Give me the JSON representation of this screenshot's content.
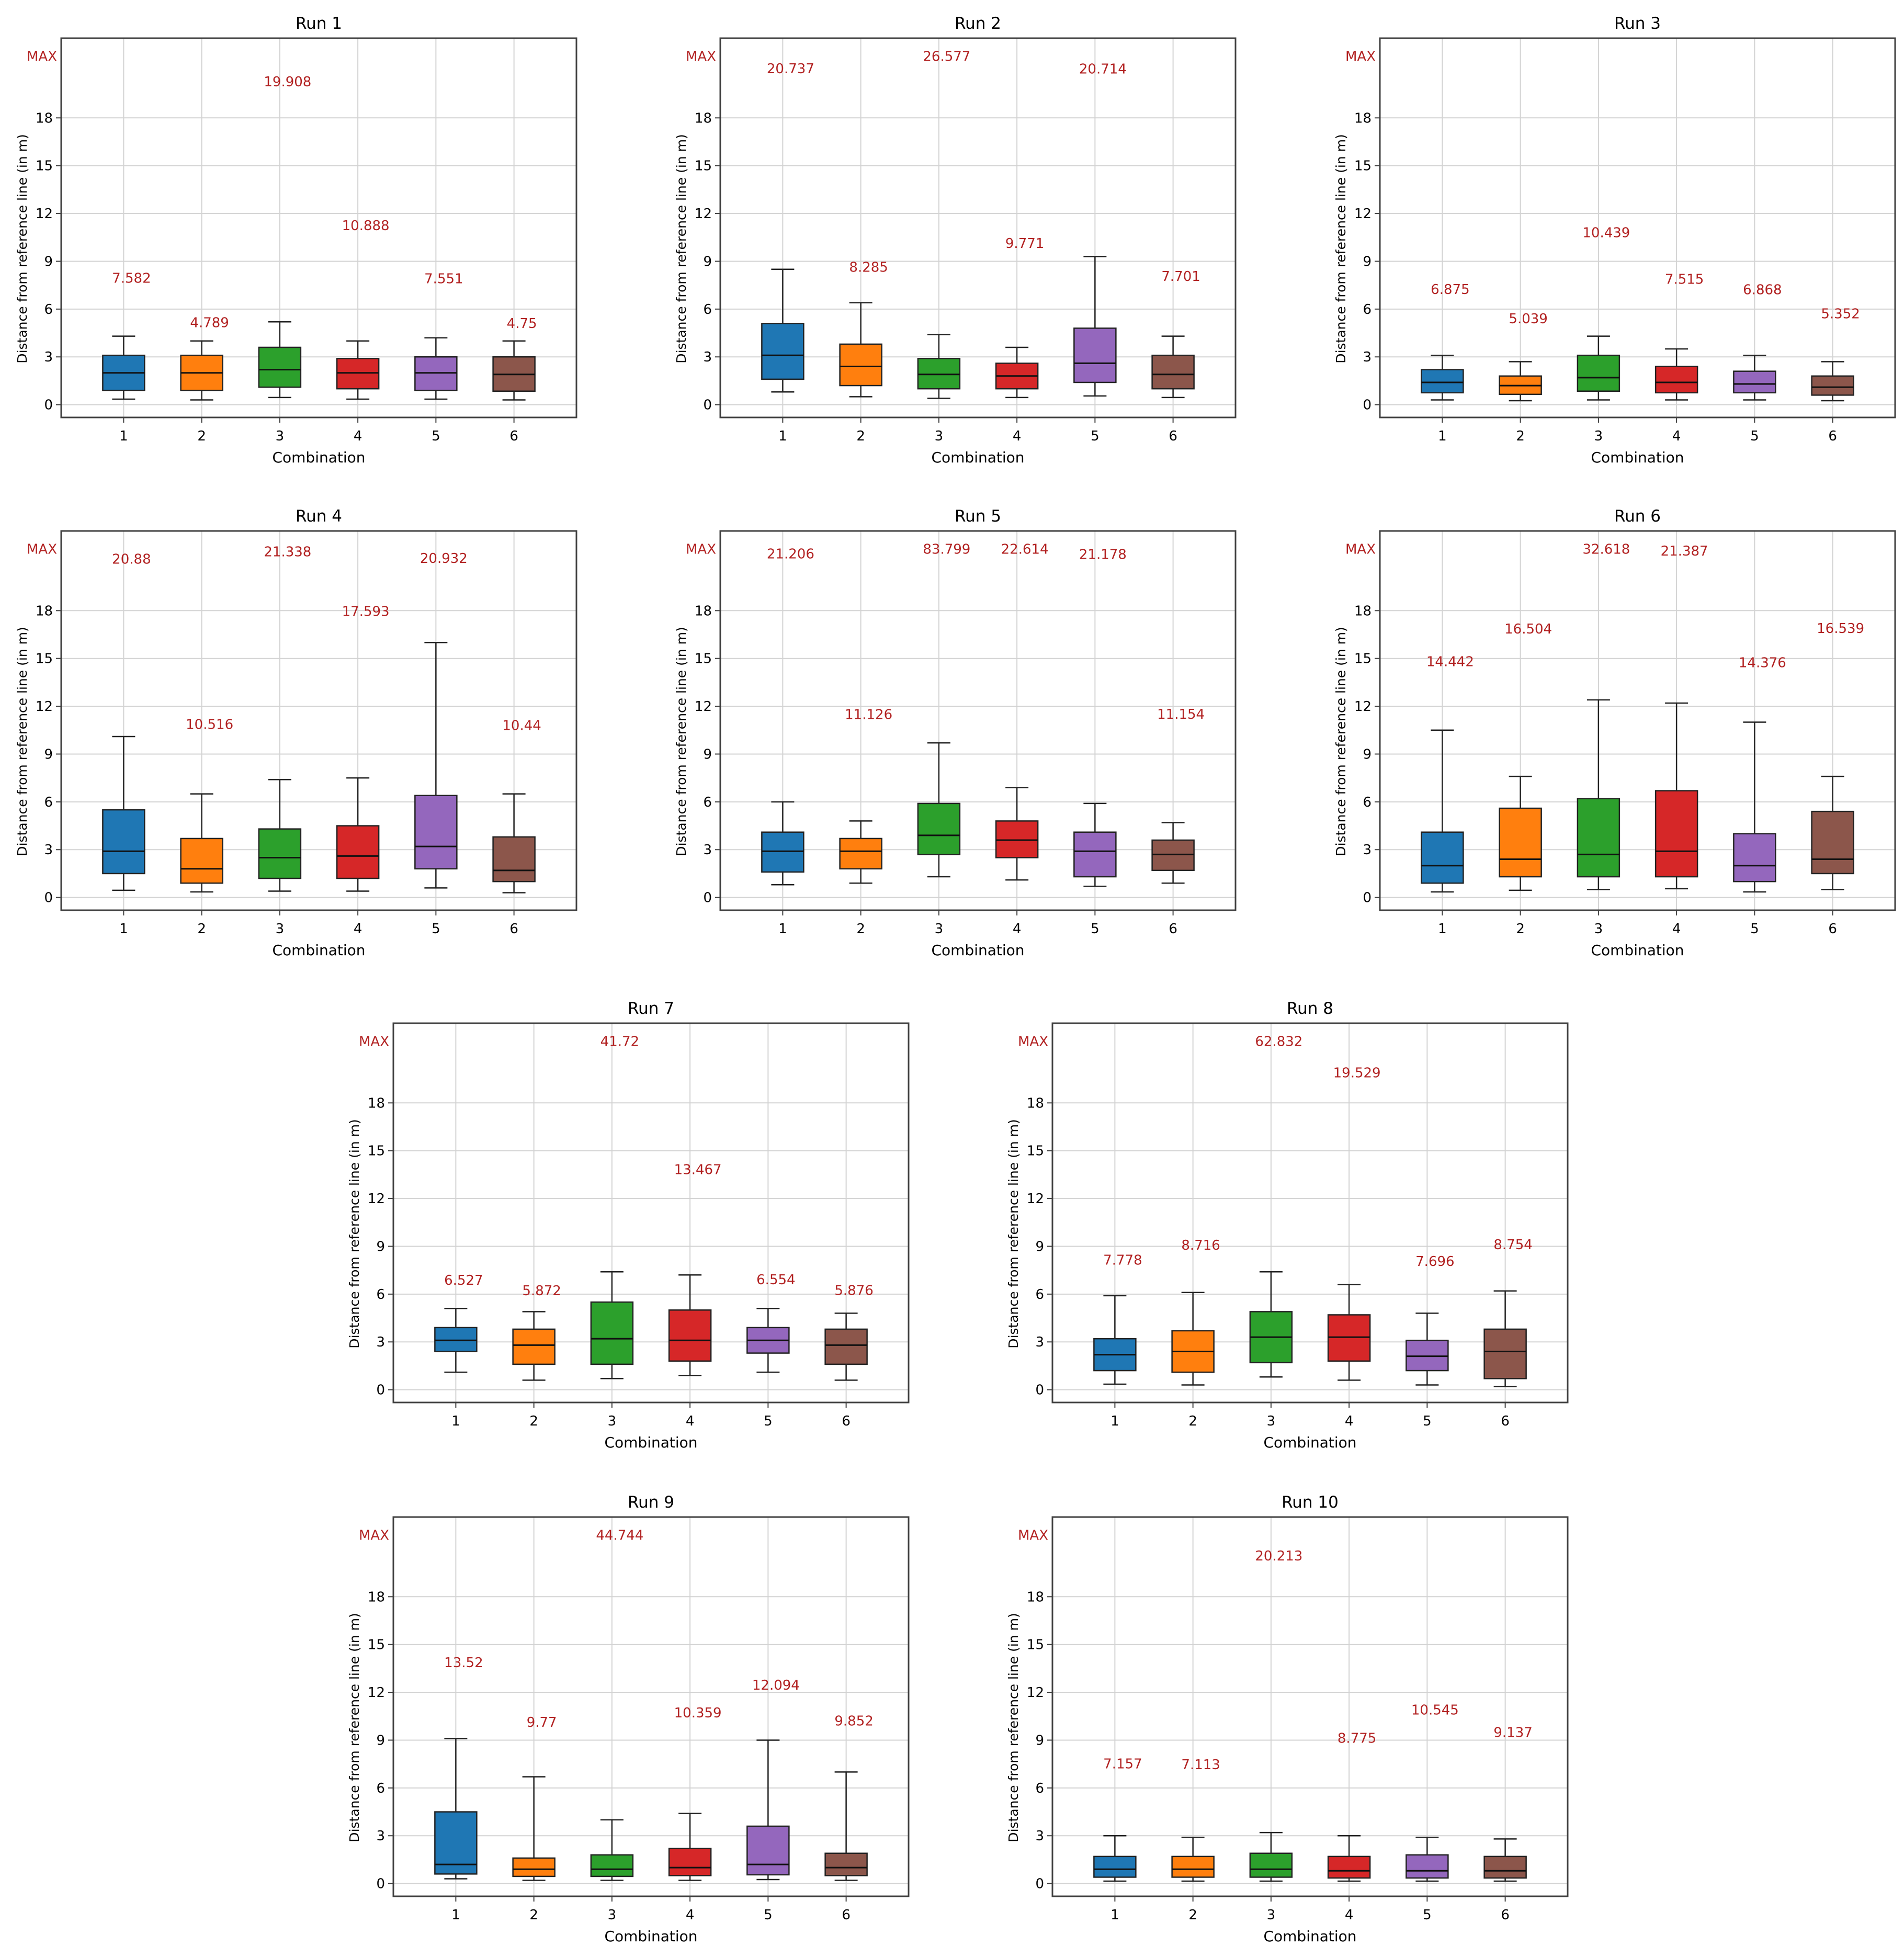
{
  "chart_data": [
    {
      "type": "box",
      "title": "Run 1",
      "xlabel": "Combination",
      "ylabel": "Distance from reference line (in m)",
      "categories": [
        "1",
        "2",
        "3",
        "4",
        "5",
        "6"
      ],
      "yticks": [
        0,
        3,
        6,
        9,
        12,
        15,
        18
      ],
      "ylim": [
        -0.8,
        23
      ],
      "max_label": "MAX",
      "boxes": [
        {
          "whislo": 0.35,
          "q1": 0.9,
          "med": 2.0,
          "q3": 3.1,
          "whishi": 4.3,
          "max": "7.582"
        },
        {
          "whislo": 0.3,
          "q1": 0.9,
          "med": 2.0,
          "q3": 3.1,
          "whishi": 4.0,
          "max": "4.789"
        },
        {
          "whislo": 0.45,
          "q1": 1.1,
          "med": 2.2,
          "q3": 3.6,
          "whishi": 5.2,
          "max": "19.908"
        },
        {
          "whislo": 0.35,
          "q1": 1.0,
          "med": 2.0,
          "q3": 2.9,
          "whishi": 4.0,
          "max": "10.888"
        },
        {
          "whislo": 0.35,
          "q1": 0.9,
          "med": 2.0,
          "q3": 3.0,
          "whishi": 4.2,
          "max": "7.551"
        },
        {
          "whislo": 0.3,
          "q1": 0.85,
          "med": 1.9,
          "q3": 3.0,
          "whishi": 4.0,
          "max": "4.75"
        }
      ]
    },
    {
      "type": "box",
      "title": "Run 2",
      "xlabel": "Combination",
      "ylabel": "Distance from reference line (in m)",
      "categories": [
        "1",
        "2",
        "3",
        "4",
        "5",
        "6"
      ],
      "yticks": [
        0,
        3,
        6,
        9,
        12,
        15,
        18
      ],
      "ylim": [
        -0.8,
        23
      ],
      "max_label": "MAX",
      "boxes": [
        {
          "whislo": 0.8,
          "q1": 1.6,
          "med": 3.1,
          "q3": 5.1,
          "whishi": 8.5,
          "max": "20.737"
        },
        {
          "whislo": 0.5,
          "q1": 1.2,
          "med": 2.4,
          "q3": 3.8,
          "whishi": 6.4,
          "max": "8.285"
        },
        {
          "whislo": 0.4,
          "q1": 1.0,
          "med": 1.9,
          "q3": 2.9,
          "whishi": 4.4,
          "max": "26.577"
        },
        {
          "whislo": 0.45,
          "q1": 1.0,
          "med": 1.8,
          "q3": 2.6,
          "whishi": 3.6,
          "max": "9.771"
        },
        {
          "whislo": 0.55,
          "q1": 1.4,
          "med": 2.6,
          "q3": 4.8,
          "whishi": 9.3,
          "max": "20.714"
        },
        {
          "whislo": 0.45,
          "q1": 1.0,
          "med": 1.9,
          "q3": 3.1,
          "whishi": 4.3,
          "max": "7.701"
        }
      ]
    },
    {
      "type": "box",
      "title": "Run 3",
      "xlabel": "Combination",
      "ylabel": "Distance from reference line (in m)",
      "categories": [
        "1",
        "2",
        "3",
        "4",
        "5",
        "6"
      ],
      "yticks": [
        0,
        3,
        6,
        9,
        12,
        15,
        18
      ],
      "ylim": [
        -0.8,
        23
      ],
      "max_label": "MAX",
      "boxes": [
        {
          "whislo": 0.3,
          "q1": 0.75,
          "med": 1.4,
          "q3": 2.2,
          "whishi": 3.1,
          "max": "6.875"
        },
        {
          "whislo": 0.25,
          "q1": 0.65,
          "med": 1.2,
          "q3": 1.8,
          "whishi": 2.7,
          "max": "5.039"
        },
        {
          "whislo": 0.3,
          "q1": 0.85,
          "med": 1.7,
          "q3": 3.1,
          "whishi": 4.3,
          "max": "10.439"
        },
        {
          "whislo": 0.3,
          "q1": 0.75,
          "med": 1.4,
          "q3": 2.4,
          "whishi": 3.5,
          "max": "7.515"
        },
        {
          "whislo": 0.3,
          "q1": 0.75,
          "med": 1.3,
          "q3": 2.1,
          "whishi": 3.1,
          "max": "6.868"
        },
        {
          "whislo": 0.25,
          "q1": 0.6,
          "med": 1.1,
          "q3": 1.8,
          "whishi": 2.7,
          "max": "5.352"
        }
      ]
    },
    {
      "type": "box",
      "title": "Run 4",
      "xlabel": "Combination",
      "ylabel": "Distance from reference line (in m)",
      "categories": [
        "1",
        "2",
        "3",
        "4",
        "5",
        "6"
      ],
      "yticks": [
        0,
        3,
        6,
        9,
        12,
        15,
        18
      ],
      "ylim": [
        -0.8,
        23
      ],
      "max_label": "MAX",
      "boxes": [
        {
          "whislo": 0.45,
          "q1": 1.5,
          "med": 2.9,
          "q3": 5.5,
          "whishi": 10.1,
          "max": "20.88"
        },
        {
          "whislo": 0.35,
          "q1": 0.9,
          "med": 1.8,
          "q3": 3.7,
          "whishi": 6.5,
          "max": "10.516"
        },
        {
          "whislo": 0.4,
          "q1": 1.2,
          "med": 2.5,
          "q3": 4.3,
          "whishi": 7.4,
          "max": "21.338"
        },
        {
          "whislo": 0.4,
          "q1": 1.2,
          "med": 2.6,
          "q3": 4.5,
          "whishi": 7.5,
          "max": "17.593"
        },
        {
          "whislo": 0.6,
          "q1": 1.8,
          "med": 3.2,
          "q3": 6.4,
          "whishi": 16.0,
          "max": "20.932"
        },
        {
          "whislo": 0.3,
          "q1": 1.0,
          "med": 1.7,
          "q3": 3.8,
          "whishi": 6.5,
          "max": "10.44"
        }
      ]
    },
    {
      "type": "box",
      "title": "Run 5",
      "xlabel": "Combination",
      "ylabel": "Distance from reference line (in m)",
      "categories": [
        "1",
        "2",
        "3",
        "4",
        "5",
        "6"
      ],
      "yticks": [
        0,
        3,
        6,
        9,
        12,
        15,
        18
      ],
      "ylim": [
        -0.8,
        23
      ],
      "max_label": "MAX",
      "boxes": [
        {
          "whislo": 0.8,
          "q1": 1.6,
          "med": 2.9,
          "q3": 4.1,
          "whishi": 6.0,
          "max": "21.206"
        },
        {
          "whislo": 0.9,
          "q1": 1.8,
          "med": 2.9,
          "q3": 3.7,
          "whishi": 4.8,
          "max": "11.126"
        },
        {
          "whislo": 1.3,
          "q1": 2.7,
          "med": 3.9,
          "q3": 5.9,
          "whishi": 9.7,
          "max": "83.799"
        },
        {
          "whislo": 1.1,
          "q1": 2.5,
          "med": 3.6,
          "q3": 4.8,
          "whishi": 6.9,
          "max": "22.614"
        },
        {
          "whislo": 0.7,
          "q1": 1.3,
          "med": 2.9,
          "q3": 4.1,
          "whishi": 5.9,
          "max": "21.178"
        },
        {
          "whislo": 0.9,
          "q1": 1.7,
          "med": 2.7,
          "q3": 3.6,
          "whishi": 4.7,
          "max": "11.154"
        }
      ]
    },
    {
      "type": "box",
      "title": "Run 6",
      "xlabel": "Combination",
      "ylabel": "Distance from reference line (in m)",
      "categories": [
        "1",
        "2",
        "3",
        "4",
        "5",
        "6"
      ],
      "yticks": [
        0,
        3,
        6,
        9,
        12,
        15,
        18
      ],
      "ylim": [
        -0.8,
        23
      ],
      "max_label": "MAX",
      "boxes": [
        {
          "whislo": 0.35,
          "q1": 0.9,
          "med": 2.0,
          "q3": 4.1,
          "whishi": 10.5,
          "max": "14.442"
        },
        {
          "whislo": 0.45,
          "q1": 1.3,
          "med": 2.4,
          "q3": 5.6,
          "whishi": 7.6,
          "max": "16.504"
        },
        {
          "whislo": 0.5,
          "q1": 1.3,
          "med": 2.7,
          "q3": 6.2,
          "whishi": 12.4,
          "max": "32.618"
        },
        {
          "whislo": 0.55,
          "q1": 1.3,
          "med": 2.9,
          "q3": 6.7,
          "whishi": 12.2,
          "max": "21.387"
        },
        {
          "whislo": 0.35,
          "q1": 1.0,
          "med": 2.0,
          "q3": 4.0,
          "whishi": 11.0,
          "max": "14.376"
        },
        {
          "whislo": 0.5,
          "q1": 1.5,
          "med": 2.4,
          "q3": 5.4,
          "whishi": 7.6,
          "max": "16.539"
        }
      ]
    },
    {
      "type": "box",
      "title": "Run 7",
      "xlabel": "Combination",
      "ylabel": "Distance from reference line (in m)",
      "categories": [
        "1",
        "2",
        "3",
        "4",
        "5",
        "6"
      ],
      "yticks": [
        0,
        3,
        6,
        9,
        12,
        15,
        18
      ],
      "ylim": [
        -0.8,
        23
      ],
      "max_label": "MAX",
      "boxes": [
        {
          "whislo": 1.1,
          "q1": 2.4,
          "med": 3.1,
          "q3": 3.9,
          "whishi": 5.1,
          "max": "6.527"
        },
        {
          "whislo": 0.6,
          "q1": 1.6,
          "med": 2.8,
          "q3": 3.8,
          "whishi": 4.9,
          "max": "5.872"
        },
        {
          "whislo": 0.7,
          "q1": 1.6,
          "med": 3.2,
          "q3": 5.5,
          "whishi": 7.4,
          "max": "41.72"
        },
        {
          "whislo": 0.9,
          "q1": 1.8,
          "med": 3.1,
          "q3": 5.0,
          "whishi": 7.2,
          "max": "13.467"
        },
        {
          "whislo": 1.1,
          "q1": 2.3,
          "med": 3.1,
          "q3": 3.9,
          "whishi": 5.1,
          "max": "6.554"
        },
        {
          "whislo": 0.6,
          "q1": 1.6,
          "med": 2.8,
          "q3": 3.8,
          "whishi": 4.8,
          "max": "5.876"
        }
      ]
    },
    {
      "type": "box",
      "title": "Run 8",
      "xlabel": "Combination",
      "ylabel": "Distance from reference line (in m)",
      "categories": [
        "1",
        "2",
        "3",
        "4",
        "5",
        "6"
      ],
      "yticks": [
        0,
        3,
        6,
        9,
        12,
        15,
        18
      ],
      "ylim": [
        -0.8,
        23
      ],
      "max_label": "MAX",
      "boxes": [
        {
          "whislo": 0.35,
          "q1": 1.2,
          "med": 2.2,
          "q3": 3.2,
          "whishi": 5.9,
          "max": "7.778"
        },
        {
          "whislo": 0.3,
          "q1": 1.1,
          "med": 2.4,
          "q3": 3.7,
          "whishi": 6.1,
          "max": "8.716"
        },
        {
          "whislo": 0.8,
          "q1": 1.7,
          "med": 3.3,
          "q3": 4.9,
          "whishi": 7.4,
          "max": "62.832"
        },
        {
          "whislo": 0.6,
          "q1": 1.8,
          "med": 3.3,
          "q3": 4.7,
          "whishi": 6.6,
          "max": "19.529"
        },
        {
          "whislo": 0.3,
          "q1": 1.2,
          "med": 2.1,
          "q3": 3.1,
          "whishi": 4.8,
          "max": "7.696"
        },
        {
          "whislo": 0.2,
          "q1": 0.7,
          "med": 2.4,
          "q3": 3.8,
          "whishi": 6.2,
          "max": "8.754"
        }
      ]
    },
    {
      "type": "box",
      "title": "Run 9",
      "xlabel": "Combination",
      "ylabel": "Distance from reference line (in m)",
      "categories": [
        "1",
        "2",
        "3",
        "4",
        "5",
        "6"
      ],
      "yticks": [
        0,
        3,
        6,
        9,
        12,
        15,
        18
      ],
      "ylim": [
        -0.8,
        23
      ],
      "max_label": "MAX",
      "boxes": [
        {
          "whislo": 0.3,
          "q1": 0.6,
          "med": 1.2,
          "q3": 4.5,
          "whishi": 9.1,
          "max": "13.52"
        },
        {
          "whislo": 0.2,
          "q1": 0.45,
          "med": 0.9,
          "q3": 1.6,
          "whishi": 6.7,
          "max": "9.77"
        },
        {
          "whislo": 0.2,
          "q1": 0.45,
          "med": 0.9,
          "q3": 1.8,
          "whishi": 4.0,
          "max": "44.744"
        },
        {
          "whislo": 0.2,
          "q1": 0.5,
          "med": 1.0,
          "q3": 2.2,
          "whishi": 4.4,
          "max": "10.359"
        },
        {
          "whislo": 0.25,
          "q1": 0.55,
          "med": 1.2,
          "q3": 3.6,
          "whishi": 9.0,
          "max": "12.094"
        },
        {
          "whislo": 0.2,
          "q1": 0.5,
          "med": 1.0,
          "q3": 1.9,
          "whishi": 7.0,
          "max": "9.852"
        }
      ]
    },
    {
      "type": "box",
      "title": "Run 10",
      "xlabel": "Combination",
      "ylabel": "Distance from reference line (in m)",
      "categories": [
        "1",
        "2",
        "3",
        "4",
        "5",
        "6"
      ],
      "yticks": [
        0,
        3,
        6,
        9,
        12,
        15,
        18
      ],
      "ylim": [
        -0.8,
        23
      ],
      "max_label": "MAX",
      "boxes": [
        {
          "whislo": 0.15,
          "q1": 0.4,
          "med": 0.9,
          "q3": 1.7,
          "whishi": 3.0,
          "max": "7.157"
        },
        {
          "whislo": 0.15,
          "q1": 0.4,
          "med": 0.9,
          "q3": 1.7,
          "whishi": 2.9,
          "max": "7.113"
        },
        {
          "whislo": 0.15,
          "q1": 0.4,
          "med": 0.9,
          "q3": 1.9,
          "whishi": 3.2,
          "max": "20.213"
        },
        {
          "whislo": 0.15,
          "q1": 0.35,
          "med": 0.8,
          "q3": 1.7,
          "whishi": 3.0,
          "max": "8.775"
        },
        {
          "whislo": 0.15,
          "q1": 0.35,
          "med": 0.8,
          "q3": 1.8,
          "whishi": 2.9,
          "max": "10.545"
        },
        {
          "whislo": 0.15,
          "q1": 0.35,
          "med": 0.8,
          "q3": 1.7,
          "whishi": 2.8,
          "max": "9.137"
        }
      ]
    }
  ],
  "colors": {
    "series": [
      "#1f77b4",
      "#ff7f0e",
      "#2ca02c",
      "#d62728",
      "#9467bd",
      "#8c564b"
    ],
    "annotation": "#b22222",
    "grid": "#d3d3d3",
    "axis": "#404040",
    "text": "#000000"
  }
}
